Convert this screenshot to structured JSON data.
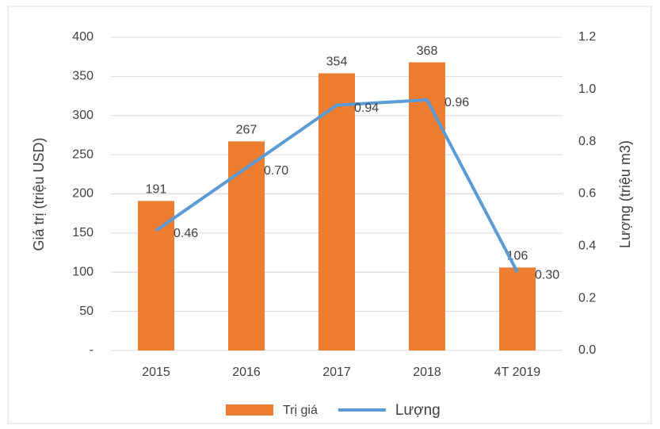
{
  "chart_data": {
    "type": "bar",
    "categories": [
      "2015",
      "2016",
      "2017",
      "2018",
      "4T 2019"
    ],
    "series": [
      {
        "name": "Trị giá",
        "type": "bar",
        "color": "#ed7d31",
        "values": [
          191,
          267,
          354,
          368,
          106
        ]
      },
      {
        "name": "Lượng",
        "type": "line",
        "axis": "y2",
        "color": "#5b9bd5",
        "values": [
          0.46,
          0.7,
          0.94,
          0.96,
          0.3
        ],
        "value_labels": [
          "0.46",
          "0.70",
          "0.94",
          "0.96",
          "0.30"
        ]
      }
    ],
    "y_label": "Giá trị (triệu USD)",
    "y2_label": "Lượng (triệu m3)",
    "ylim": [
      0,
      400
    ],
    "yticks": [
      {
        "value": 0,
        "label": "-"
      },
      50,
      100,
      150,
      200,
      250,
      300,
      350,
      400
    ],
    "y2lim": [
      0,
      1.2
    ],
    "y2ticks": [
      {
        "value": 0,
        "label": "0.0"
      },
      0.2,
      0.4,
      0.6,
      0.8,
      {
        "value": 1,
        "label": "1.0"
      },
      1.2
    ],
    "grid": true,
    "legend": "bottom"
  }
}
